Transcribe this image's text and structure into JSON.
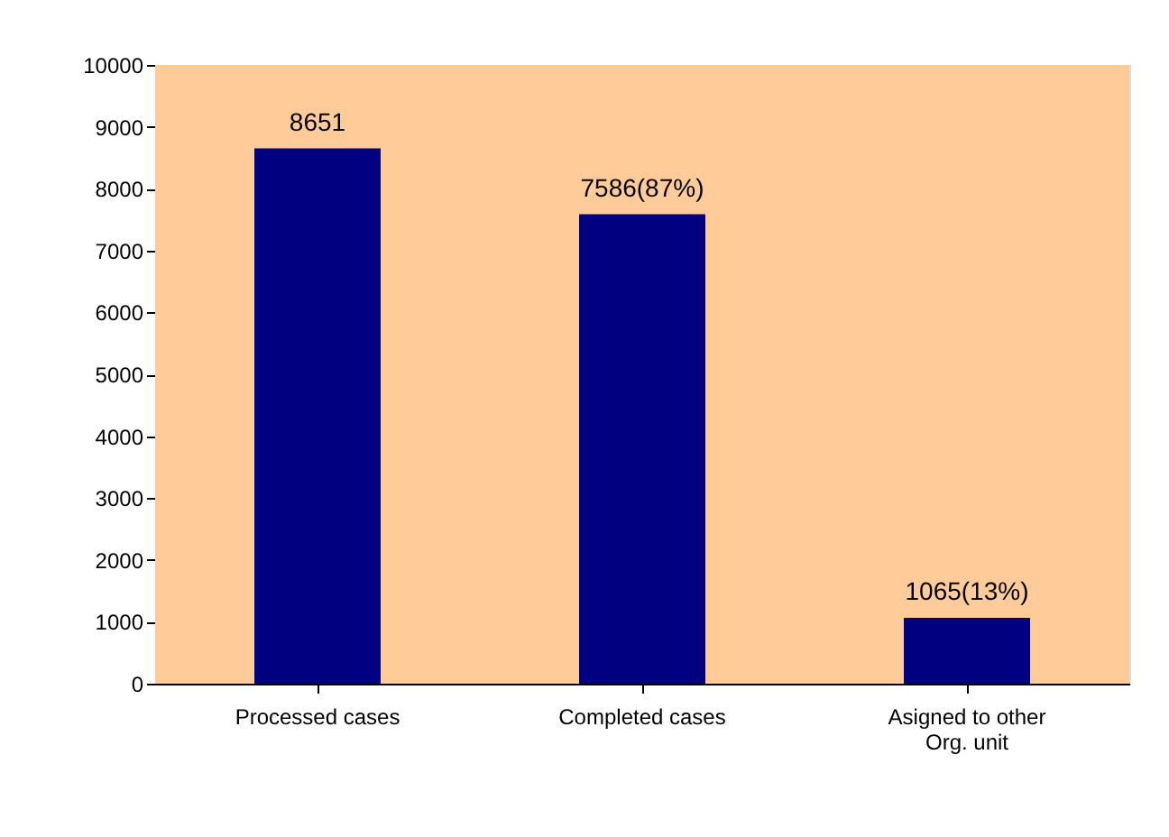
{
  "chart_data": {
    "type": "bar",
    "categories": [
      "Processed cases",
      "Completed cases",
      "Asigned to other Org. unit"
    ],
    "values": [
      8651,
      7586,
      1065
    ],
    "value_labels": [
      "8651",
      "7586(87%)",
      "1065(13%)"
    ],
    "color": "#000080",
    "ylim": [
      0,
      10000
    ],
    "yticks": [
      0,
      1000,
      2000,
      3000,
      4000,
      5000,
      6000,
      7000,
      8000,
      9000,
      10000
    ]
  }
}
